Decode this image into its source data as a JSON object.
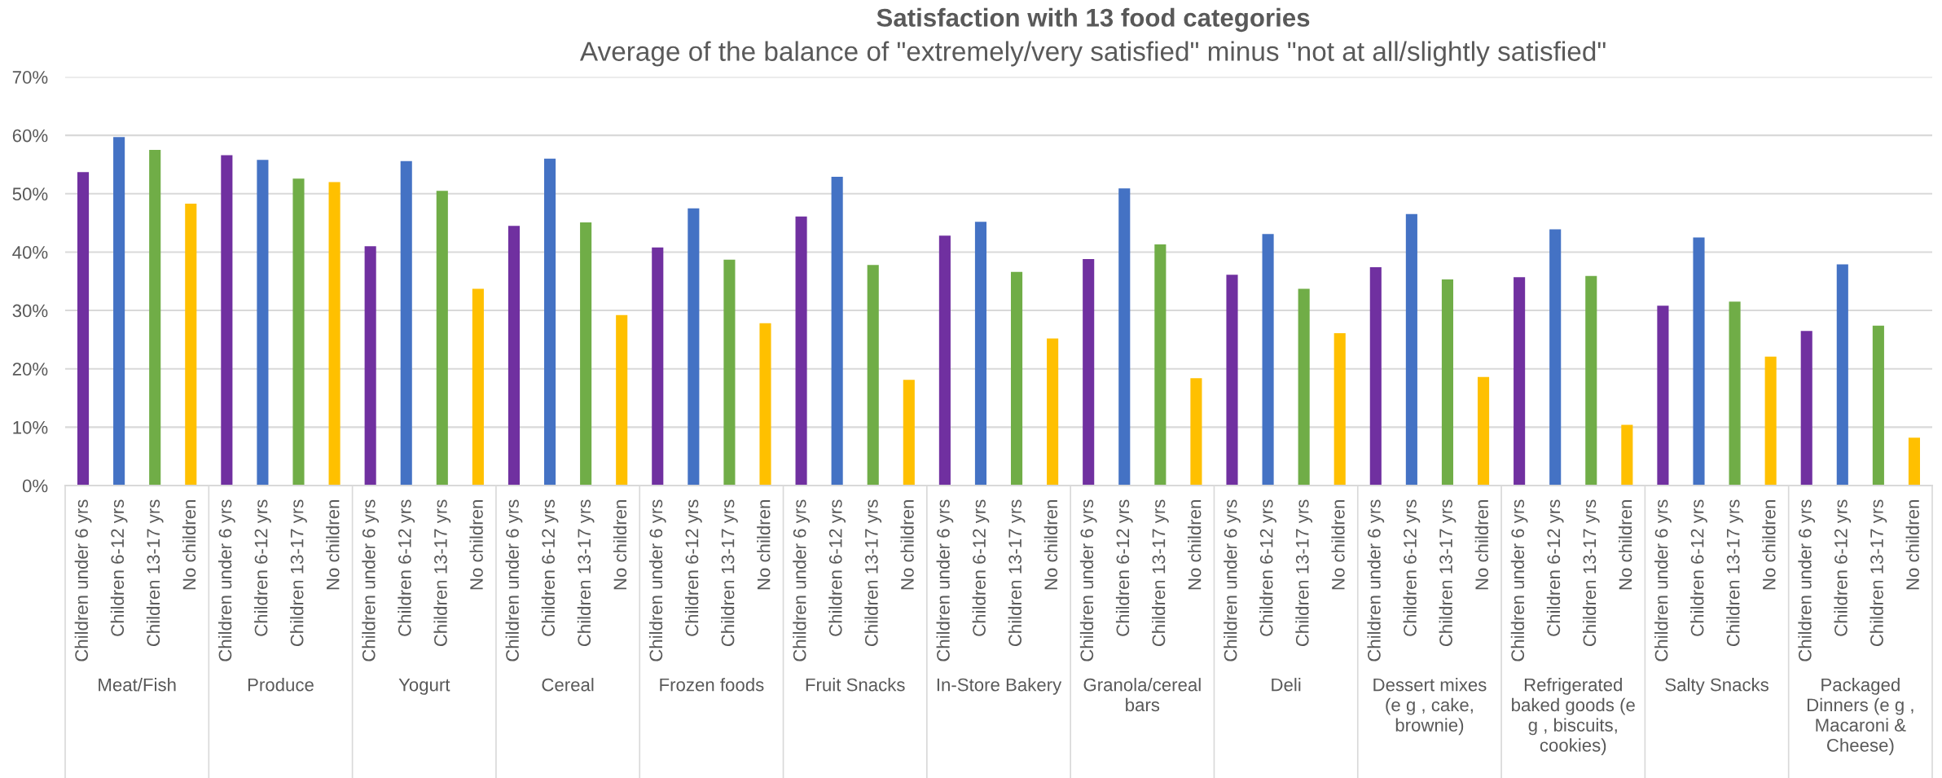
{
  "chart_data": {
    "type": "bar",
    "title": "Satisfaction with 13 food categories",
    "subtitle": "Average of the balance of \"extremely/very satisfied\" minus \"not at all/slightly satisfied\"",
    "categories": [
      "Children under 6 yrs",
      "Children 6-12 yrs",
      "Children 13-17 yrs",
      "No children",
      "Children under 6 yrs",
      "Children 6-12 yrs",
      "Children 13-17 yrs",
      "No children",
      "Children under 6 yrs",
      "Children 6-12 yrs",
      "Children 13-17 yrs",
      "No children",
      "Children under 6 yrs",
      "Children 6-12 yrs",
      "Children 13-17 yrs",
      "No children",
      "Children under 6 yrs",
      "Children 6-12 yrs",
      "Children 13-17 yrs",
      "No children",
      "Children under 6 yrs",
      "Children 6-12 yrs",
      "Children 13-17 yrs",
      "No children",
      "Children under 6 yrs",
      "Children 6-12 yrs",
      "Children 13-17 yrs",
      "No children",
      "Children under 6 yrs",
      "Children 6-12 yrs",
      "Children 13-17 yrs",
      "No children",
      "Children under 6 yrs",
      "Children 6-12 yrs",
      "Children 13-17 yrs",
      "No children",
      "Children under 6 yrs",
      "Children 6-12 yrs",
      "Children 13-17 yrs",
      "No children",
      "Children under 6 yrs",
      "Children 6-12 yrs",
      "Children 13-17 yrs",
      "No children",
      "Children under 6 yrs",
      "Children 6-12 yrs",
      "Children 13-17 yrs",
      "No children",
      "Children under 6 yrs",
      "Children 6-12 yrs",
      "Children 13-17 yrs",
      "No children"
    ],
    "values": [
      53.7,
      59.7,
      57.5,
      48.3,
      56.6,
      55.8,
      52.6,
      52.0,
      41.0,
      55.6,
      50.5,
      33.7,
      44.5,
      56.0,
      45.1,
      29.2,
      40.8,
      47.5,
      38.7,
      27.8,
      46.1,
      52.9,
      37.8,
      18.1,
      42.8,
      45.2,
      36.6,
      25.2,
      38.8,
      50.9,
      41.3,
      18.4,
      36.1,
      43.1,
      33.7,
      26.1,
      37.4,
      46.5,
      35.3,
      18.6,
      35.7,
      43.9,
      35.9,
      10.4,
      30.8,
      42.5,
      31.5,
      22.1,
      26.5,
      37.9,
      27.4,
      8.2
    ],
    "colors": [
      "#7030a0",
      "#4472c4",
      "#70ad47",
      "#ffc000",
      "#7030a0",
      "#4472c4",
      "#70ad47",
      "#ffc000",
      "#7030a0",
      "#4472c4",
      "#70ad47",
      "#ffc000",
      "#7030a0",
      "#4472c4",
      "#70ad47",
      "#ffc000",
      "#7030a0",
      "#4472c4",
      "#70ad47",
      "#ffc000",
      "#7030a0",
      "#4472c4",
      "#70ad47",
      "#ffc000",
      "#7030a0",
      "#4472c4",
      "#70ad47",
      "#ffc000",
      "#7030a0",
      "#4472c4",
      "#70ad47",
      "#ffc000",
      "#7030a0",
      "#4472c4",
      "#70ad47",
      "#ffc000",
      "#7030a0",
      "#4472c4",
      "#70ad47",
      "#ffc000",
      "#7030a0",
      "#4472c4",
      "#70ad47",
      "#ffc000",
      "#7030a0",
      "#4472c4",
      "#70ad47",
      "#ffc000",
      "#7030a0",
      "#4472c4",
      "#70ad47",
      "#ffc000"
    ],
    "annotations": [
      "Meat/Fish",
      "Produce",
      "Yogurt",
      "Cereal",
      "Frozen foods",
      "Fruit Snacks",
      "In-Store Bakery",
      "Granola/cereal bars",
      "Deli",
      "Dessert mixes (e g , cake, brownie)",
      "Refrigerated baked goods (e g , biscuits, cookies)",
      "Salty Snacks",
      "Packaged Dinners (e g , Macaroni & Cheese)"
    ],
    "ylim": [
      0,
      70
    ],
    "yticks": [
      {
        "value": 0,
        "label": "0%"
      },
      {
        "value": 10,
        "label": "10%"
      },
      {
        "value": 20,
        "label": "20%"
      },
      {
        "value": 30,
        "label": "30%"
      },
      {
        "value": 40,
        "label": "40%"
      },
      {
        "value": 50,
        "label": "50%"
      },
      {
        "value": 60,
        "label": "60%"
      },
      {
        "value": 70,
        "label": "70%"
      }
    ],
    "grid": "y"
  }
}
